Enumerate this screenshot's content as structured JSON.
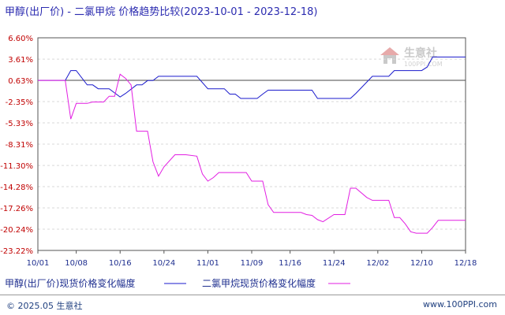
{
  "title": "甲醇(出厂价) - 二氯甲烷 价格趋势比较(2023-10-01 - 2023-12-18)",
  "footer": {
    "copyright": "© 2025.05 生意社",
    "site": "www.100PPI.com"
  },
  "watermark": {
    "name": "生意社",
    "sub": "100PPI.COM",
    "icon": "house-logo-icon"
  },
  "chart_data": {
    "type": "line",
    "x_ticks": [
      "10/01",
      "10/08",
      "10/16",
      "10/24",
      "11/01",
      "11/09",
      "11/16",
      "11/24",
      "12/02",
      "12/10",
      "12/18"
    ],
    "x_range": [
      "10/01",
      "12/18"
    ],
    "y_ticks": [
      "6.60%",
      "3.61%",
      "0.63%",
      "-2.35%",
      "-5.33%",
      "-8.31%",
      "-11.30%",
      "-14.28%",
      "-17.26%",
      "-20.24%",
      "-23.22%"
    ],
    "ylim": [
      -23.22,
      6.6
    ],
    "grid": "horizontal-dashed",
    "legend_position": "bottom",
    "colors": {
      "series_1": "#1a1acc",
      "series_2": "#e21ee2",
      "grid": "#d9d9d9",
      "zero_line": "#4a4a4a",
      "axis": "#555555",
      "tick_positive": "#c00000",
      "tick_negative": "#c00000"
    },
    "series": [
      {
        "name": "甲醇(出厂价)现货价格变化幅度",
        "x": [
          "10/01",
          "10/06",
          "10/07",
          "10/08",
          "10/10",
          "10/11",
          "10/12",
          "10/13",
          "10/14",
          "10/16",
          "10/17",
          "10/19",
          "10/20",
          "10/21",
          "10/22",
          "10/23",
          "10/24",
          "10/30",
          "11/01",
          "11/03",
          "11/04",
          "11/05",
          "11/06",
          "11/07",
          "11/09",
          "11/10",
          "11/11",
          "11/12",
          "11/13",
          "11/14",
          "11/20",
          "11/21",
          "11/26",
          "11/27",
          "11/28",
          "12/01",
          "12/04",
          "12/05",
          "12/07",
          "12/08",
          "12/09",
          "12/10",
          "12/11",
          "12/12",
          "12/18"
        ],
        "values": [
          0.63,
          0.63,
          2.0,
          2.0,
          0.0,
          0.0,
          -0.55,
          -0.55,
          -0.55,
          -1.7,
          -1.2,
          0.0,
          0.0,
          0.6,
          0.6,
          1.2,
          1.2,
          1.2,
          -0.55,
          -0.55,
          -0.55,
          -1.3,
          -1.3,
          -1.9,
          -1.9,
          -1.9,
          -1.3,
          -0.75,
          -0.75,
          -0.75,
          -0.75,
          -1.9,
          -1.9,
          -1.9,
          -1.2,
          1.2,
          1.2,
          2.0,
          2.0,
          2.0,
          2.0,
          2.0,
          2.5,
          3.9,
          3.9
        ]
      },
      {
        "name": "二氯甲烷现货价格变化幅度",
        "x": [
          "10/01",
          "10/06",
          "10/07",
          "10/08",
          "10/10",
          "10/11",
          "10/12",
          "10/13",
          "10/14",
          "10/15",
          "10/16",
          "10/17",
          "10/18",
          "10/19",
          "10/20",
          "10/21",
          "10/22",
          "10/23",
          "10/24",
          "10/26",
          "10/28",
          "10/30",
          "10/31",
          "11/01",
          "11/02",
          "11/03",
          "11/06",
          "11/07",
          "11/08",
          "11/09",
          "11/10",
          "11/11",
          "11/12",
          "11/13",
          "11/14",
          "11/18",
          "11/19",
          "11/20",
          "11/21",
          "11/22",
          "11/24",
          "11/25",
          "11/26",
          "11/27",
          "11/28",
          "11/30",
          "12/01",
          "12/04",
          "12/05",
          "12/06",
          "12/07",
          "12/08",
          "12/09",
          "12/11",
          "12/12",
          "12/13",
          "12/18"
        ],
        "values": [
          0.63,
          0.63,
          -4.8,
          -2.6,
          -2.6,
          -2.4,
          -2.4,
          -2.4,
          -1.6,
          -1.6,
          1.5,
          0.9,
          0.0,
          -6.5,
          -6.5,
          -6.5,
          -10.8,
          -12.8,
          -11.5,
          -9.8,
          -9.8,
          -10.0,
          -12.5,
          -13.5,
          -13.0,
          -12.3,
          -12.3,
          -12.3,
          -12.3,
          -13.5,
          -13.5,
          -13.5,
          -16.8,
          -17.9,
          -17.9,
          -17.9,
          -18.2,
          -18.3,
          -18.9,
          -19.2,
          -18.2,
          -18.2,
          -18.2,
          -14.5,
          -14.5,
          -15.8,
          -16.2,
          -16.2,
          -18.6,
          -18.6,
          -19.5,
          -20.6,
          -20.8,
          -20.8,
          -20.0,
          -19.0,
          -19.0
        ]
      }
    ]
  }
}
